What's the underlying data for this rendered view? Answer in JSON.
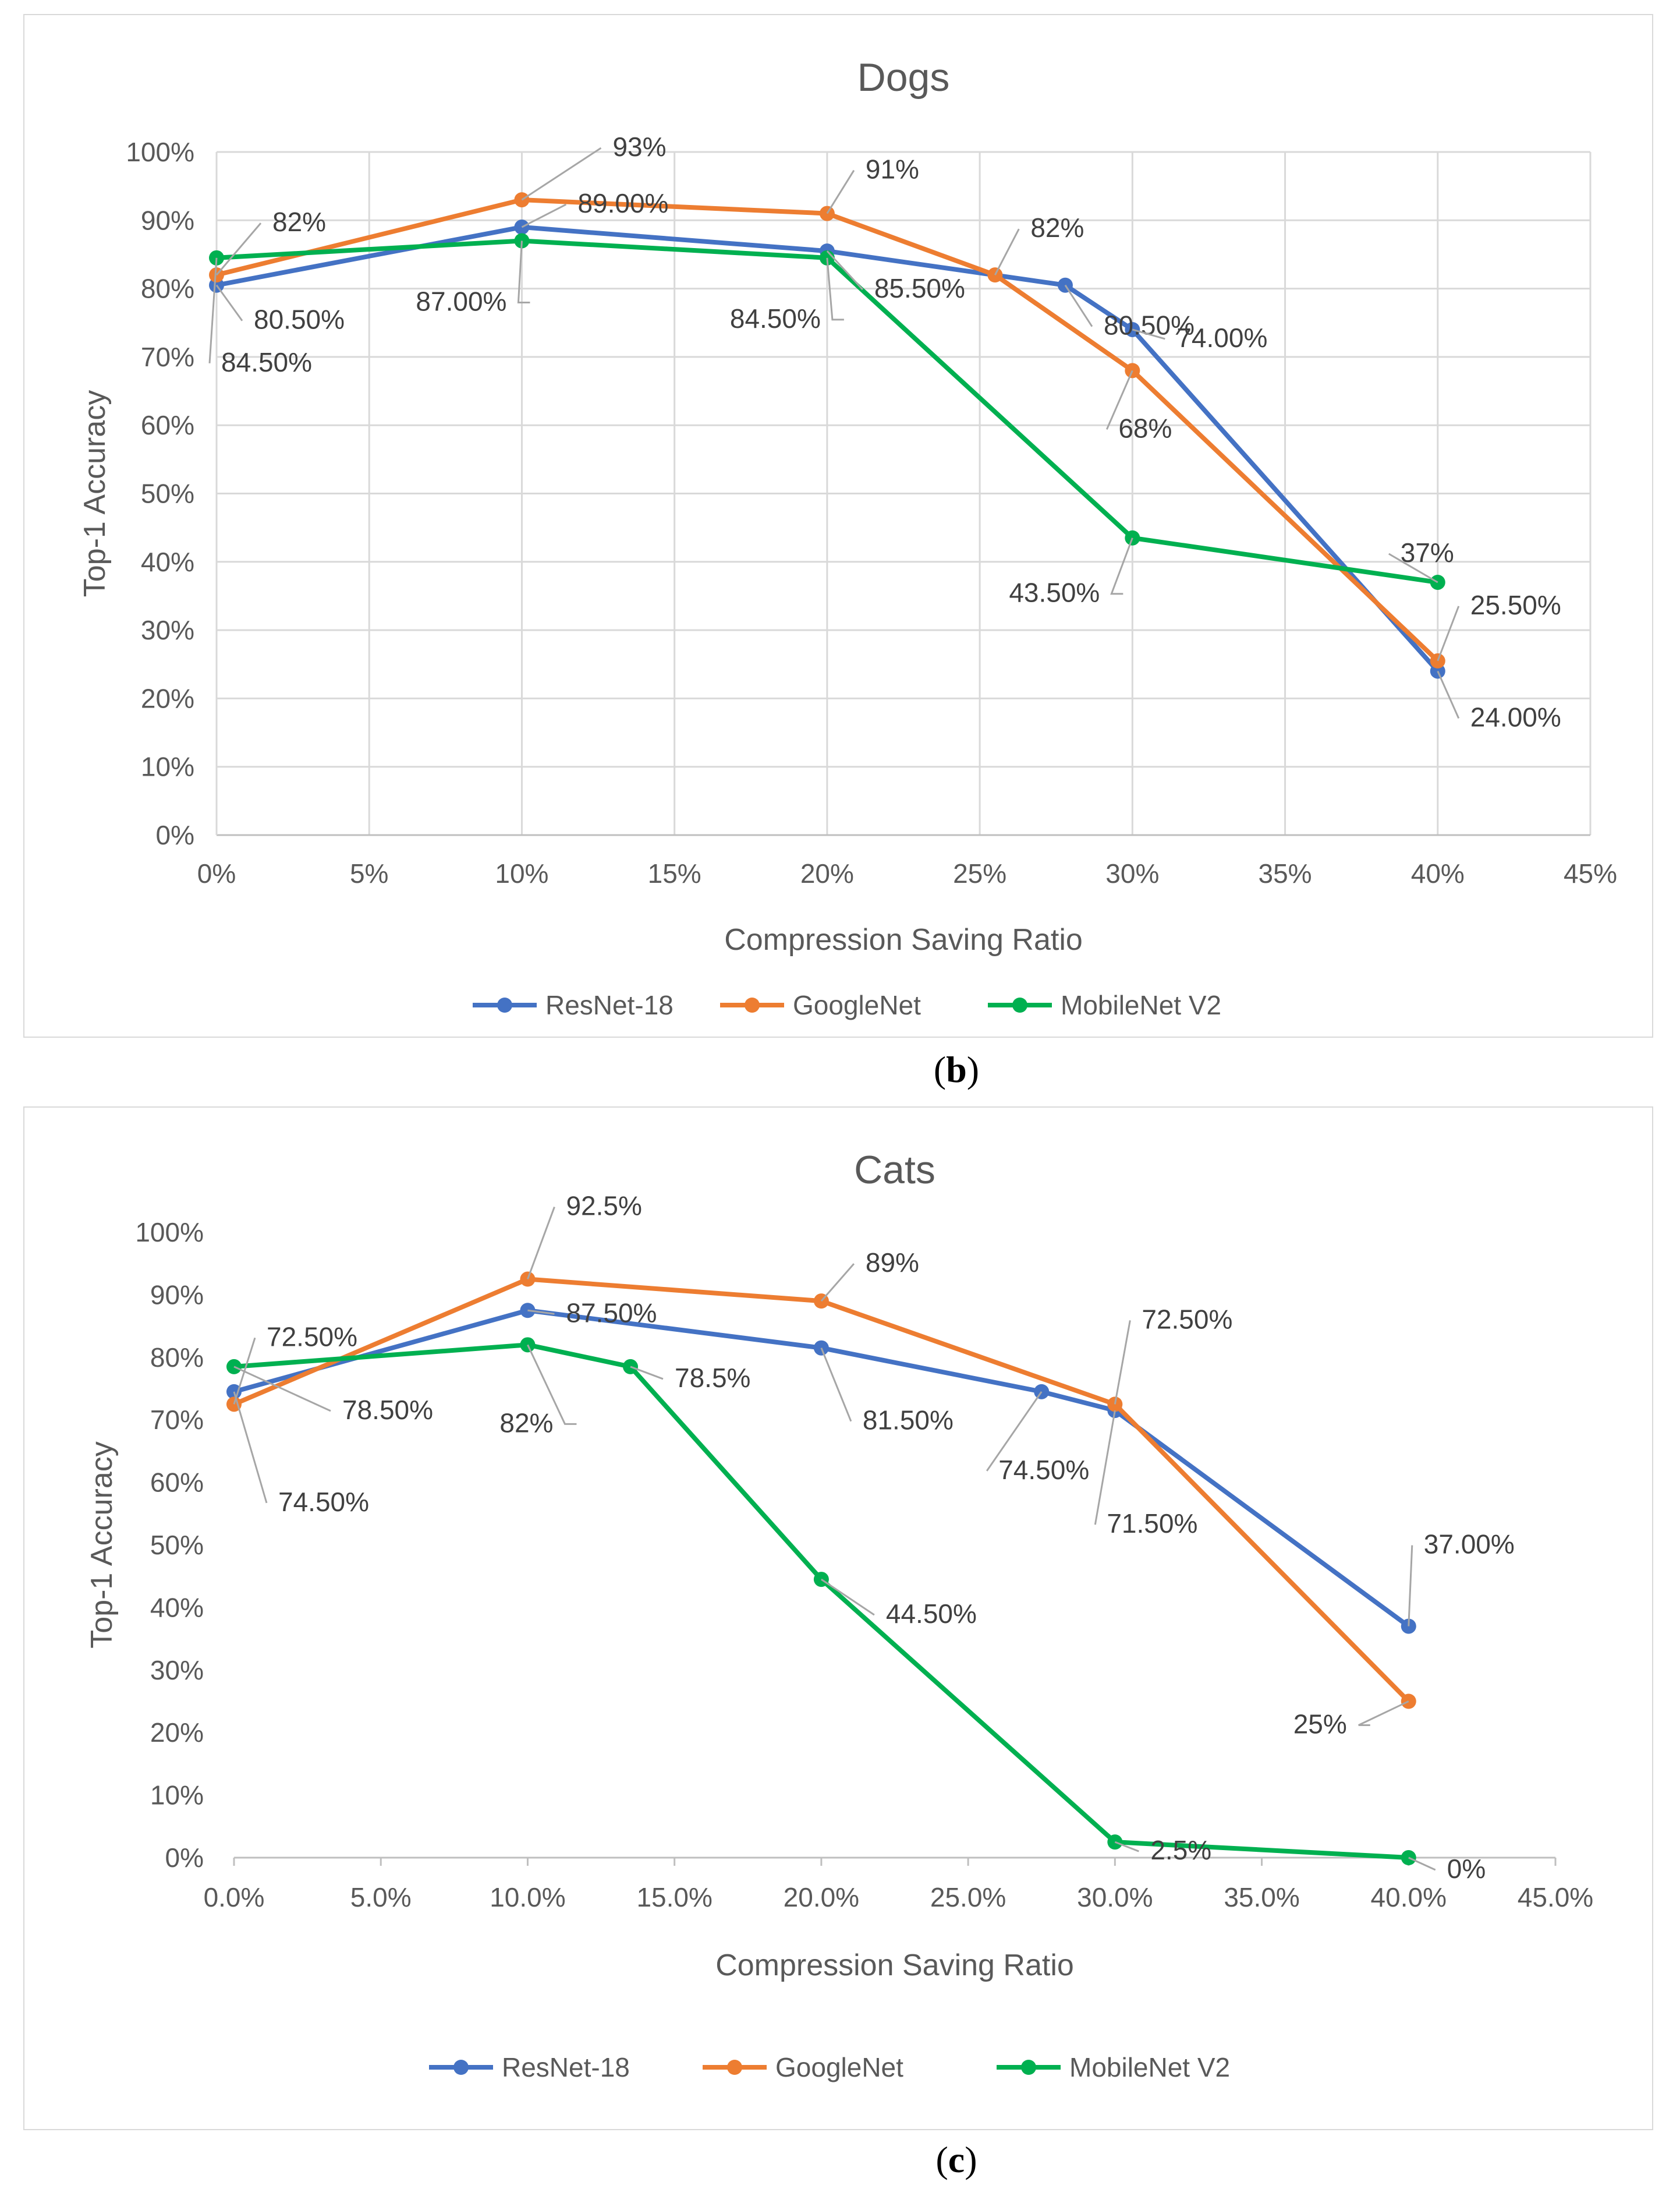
{
  "captions": {
    "b": "b",
    "c": "c"
  },
  "chart_data": [
    {
      "id": "b",
      "type": "line",
      "title": "Dogs",
      "xlabel": "Compression Saving Ratio",
      "ylabel": "Top-1 Accuracy",
      "xlim": [
        0,
        45
      ],
      "ylim": [
        0,
        100
      ],
      "xticks": [
        "0%",
        "5%",
        "10%",
        "15%",
        "20%",
        "25%",
        "30%",
        "35%",
        "40%",
        "45%"
      ],
      "yticks": [
        "0%",
        "10%",
        "20%",
        "30%",
        "40%",
        "50%",
        "60%",
        "70%",
        "80%",
        "90%",
        "100%"
      ],
      "grid": true,
      "legend": "bottom",
      "series": [
        {
          "name": "ResNet-18",
          "color": "#4472C4",
          "x": [
            0,
            10,
            20,
            27.8,
            30,
            40
          ],
          "y": [
            80.5,
            89,
            85.5,
            80.5,
            74,
            24
          ]
        },
        {
          "name": "GoogleNet",
          "color": "#ED7D31",
          "x": [
            0,
            10,
            20,
            25.5,
            30,
            40
          ],
          "y": [
            82,
            93,
            91,
            82,
            68,
            25.5
          ]
        },
        {
          "name": "MobileNet V2",
          "color": "#00B050",
          "x": [
            0,
            10,
            20,
            30,
            40
          ],
          "y": [
            84.5,
            87,
            84.5,
            43.5,
            37
          ]
        }
      ],
      "data_labels": [
        {
          "text": "82%",
          "x": 0,
          "y": 82,
          "series": "GoogleNet"
        },
        {
          "text": "80.50%",
          "x": 0,
          "y": 80.5,
          "series": "ResNet-18"
        },
        {
          "text": "84.50%",
          "x": 0,
          "y": 84.5,
          "series": "MobileNet V2"
        },
        {
          "text": "93%",
          "x": 10,
          "y": 93,
          "series": "GoogleNet"
        },
        {
          "text": "89.00%",
          "x": 10,
          "y": 89,
          "series": "ResNet-18"
        },
        {
          "text": "87.00%",
          "x": 10,
          "y": 87,
          "series": "MobileNet V2"
        },
        {
          "text": "91%",
          "x": 20,
          "y": 91,
          "series": "GoogleNet"
        },
        {
          "text": "84.50%",
          "x": 20,
          "y": 84.5,
          "series": "MobileNet V2"
        },
        {
          "text": "85.50%",
          "x": 20,
          "y": 85.5,
          "series": "ResNet-18"
        },
        {
          "text": "82%",
          "x": 25.5,
          "y": 82,
          "series": "GoogleNet"
        },
        {
          "text": "80.50%",
          "x": 27.8,
          "y": 80.5,
          "series": "ResNet-18"
        },
        {
          "text": "74.00%",
          "x": 30,
          "y": 74,
          "series": "ResNet-18"
        },
        {
          "text": "68%",
          "x": 30,
          "y": 68,
          "series": "GoogleNet"
        },
        {
          "text": "43.50%",
          "x": 30,
          "y": 43.5,
          "series": "MobileNet V2"
        },
        {
          "text": "37%",
          "x": 40,
          "y": 37,
          "series": "MobileNet V2"
        },
        {
          "text": "25.50%",
          "x": 40,
          "y": 25.5,
          "series": "GoogleNet"
        },
        {
          "text": "24.00%",
          "x": 40,
          "y": 24,
          "series": "ResNet-18"
        }
      ]
    },
    {
      "id": "c",
      "type": "line",
      "title": "Cats",
      "xlabel": "Compression Saving Ratio",
      "ylabel": "Top-1 Accuracy",
      "xlim": [
        0,
        45
      ],
      "ylim": [
        0,
        100
      ],
      "xticks": [
        "0.0%",
        "5.0%",
        "10.0%",
        "15.0%",
        "20.0%",
        "25.0%",
        "30.0%",
        "35.0%",
        "40.0%",
        "45.0%"
      ],
      "yticks": [
        "0%",
        "10%",
        "20%",
        "30%",
        "40%",
        "50%",
        "60%",
        "70%",
        "80%",
        "90%",
        "100%"
      ],
      "grid": false,
      "legend": "bottom",
      "series": [
        {
          "name": "ResNet-18",
          "color": "#4472C4",
          "x": [
            0,
            10,
            20,
            27.5,
            30,
            40
          ],
          "y": [
            74.5,
            87.5,
            81.5,
            74.5,
            71.5,
            37
          ]
        },
        {
          "name": "GoogleNet",
          "color": "#ED7D31",
          "x": [
            0,
            10,
            20,
            30,
            40
          ],
          "y": [
            72.5,
            92.5,
            89,
            72.5,
            25
          ]
        },
        {
          "name": "MobileNet V2",
          "color": "#00B050",
          "x": [
            0,
            10,
            13.5,
            20,
            30,
            40
          ],
          "y": [
            78.5,
            82,
            78.5,
            44.5,
            2.5,
            0
          ]
        }
      ],
      "data_labels": [
        {
          "text": "72.50%",
          "x": 0,
          "y": 72.5,
          "series": "GoogleNet"
        },
        {
          "text": "78.50%",
          "x": 0,
          "y": 78.5,
          "series": "MobileNet V2"
        },
        {
          "text": "74.50%",
          "x": 0,
          "y": 74.5,
          "series": "ResNet-18"
        },
        {
          "text": "92.5%",
          "x": 10,
          "y": 92.5,
          "series": "GoogleNet"
        },
        {
          "text": "87.50%",
          "x": 10,
          "y": 87.5,
          "series": "ResNet-18"
        },
        {
          "text": "82%",
          "x": 10,
          "y": 82,
          "series": "MobileNet V2"
        },
        {
          "text": "78.5%",
          "x": 13.5,
          "y": 78.5,
          "series": "MobileNet V2"
        },
        {
          "text": "89%",
          "x": 20,
          "y": 89,
          "series": "GoogleNet"
        },
        {
          "text": "81.50%",
          "x": 20,
          "y": 81.5,
          "series": "ResNet-18"
        },
        {
          "text": "44.50%",
          "x": 20,
          "y": 44.5,
          "series": "MobileNet V2"
        },
        {
          "text": "74.50%",
          "x": 27.5,
          "y": 74.5,
          "series": "ResNet-18"
        },
        {
          "text": "72.50%",
          "x": 30,
          "y": 72.5,
          "series": "GoogleNet"
        },
        {
          "text": "71.50%",
          "x": 30,
          "y": 71.5,
          "series": "ResNet-18"
        },
        {
          "text": "2.5%",
          "x": 30,
          "y": 2.5,
          "series": "MobileNet V2"
        },
        {
          "text": "37.00%",
          "x": 40,
          "y": 37,
          "series": "ResNet-18"
        },
        {
          "text": "25%",
          "x": 40,
          "y": 25,
          "series": "GoogleNet"
        },
        {
          "text": "0%",
          "x": 40,
          "y": 0,
          "series": "MobileNet V2"
        }
      ]
    }
  ]
}
